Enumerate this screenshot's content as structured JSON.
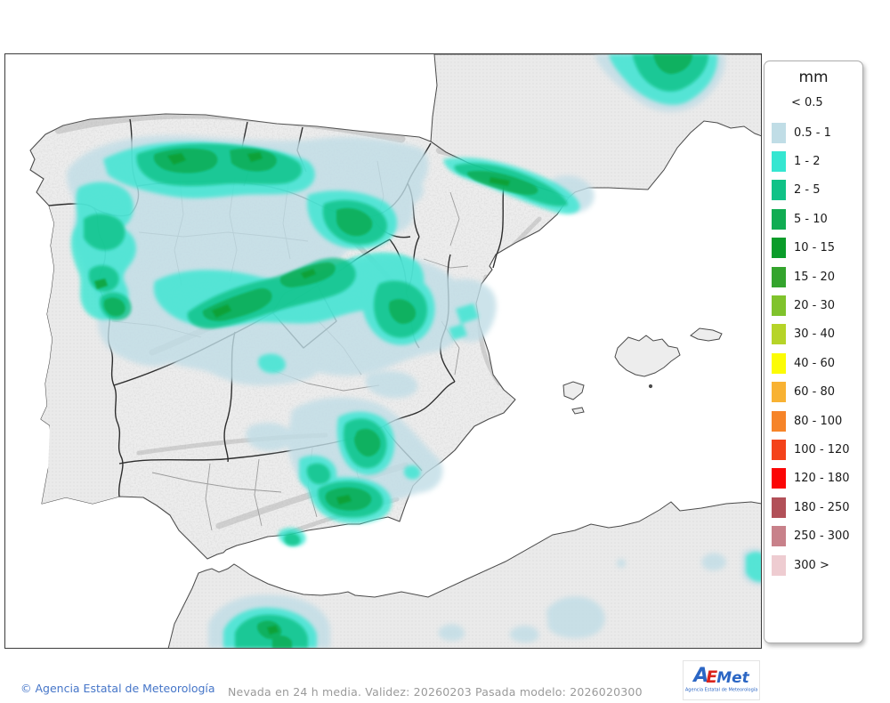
{
  "map_footer": {
    "copyright": "© Agencia Estatal de Meteorología",
    "model_info": "Nevada en 24 h media. Validez: 20260203 Pasada modelo: 2026020300"
  },
  "legend": {
    "title": "mm",
    "below_threshold_label": "< 0.5",
    "entries": [
      {
        "label": "0.5 - 1",
        "color": "#c0dde6"
      },
      {
        "label": "1 - 2",
        "color": "#35e6d1"
      },
      {
        "label": "2 - 5",
        "color": "#10c287"
      },
      {
        "label": "5 - 10",
        "color": "#10ac52"
      },
      {
        "label": "10 - 15",
        "color": "#0a9c2a"
      },
      {
        "label": "15 - 20",
        "color": "#34a42d"
      },
      {
        "label": "20 - 30",
        "color": "#80c32c"
      },
      {
        "label": "30 - 40",
        "color": "#b6d428"
      },
      {
        "label": "40 - 60",
        "color": "#fcfc05"
      },
      {
        "label": "60 - 80",
        "color": "#f8b233"
      },
      {
        "label": "80 - 100",
        "color": "#f68429"
      },
      {
        "label": "100 - 120",
        "color": "#f4421a"
      },
      {
        "label": "120 - 180",
        "color": "#fb0606"
      },
      {
        "label": "180 - 250",
        "color": "#b25058"
      },
      {
        "label": "250 - 300",
        "color": "#c8818a"
      },
      {
        "label": "300 >",
        "color": "#eeccd1"
      }
    ]
  },
  "logo": {
    "part_a": "A",
    "part_e": "E",
    "part_met": "Met",
    "subtitle": "Agencia Estatal de Meteorología"
  },
  "map_colors": {
    "sea": "#ffffff",
    "iberia_land": "#ededed",
    "foreign_land": "#eaeaea",
    "coast_line": "#4a4a4a",
    "region_border": "#2e2e2e",
    "province_border": "#9d9d9d",
    "precip_light_blue": "#c0dde6",
    "precip_cyan": "#35e6d1",
    "precip_2_5": "#10c287",
    "precip_5_10": "#10ac52",
    "precip_10_15": "#0a9c2a"
  }
}
